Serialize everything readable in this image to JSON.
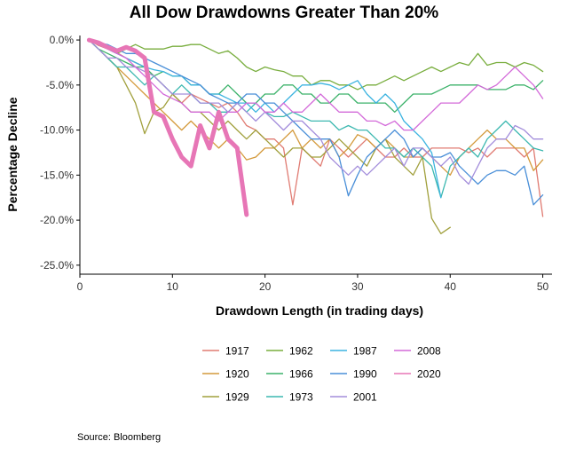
{
  "chart_data": {
    "type": "line",
    "title": "All Dow Drawdowns Greater Than 20%",
    "xlabel": "Drawdown Length (in trading days)",
    "ylabel": "Percentage Decline",
    "xlim": [
      0,
      51
    ],
    "ylim": [
      -26,
      0.5
    ],
    "x_ticks": [
      0,
      10,
      20,
      30,
      40,
      50
    ],
    "y_ticks": [
      0,
      -5,
      -10,
      -15,
      -20,
      -25
    ],
    "y_tick_labels": [
      "0.0%",
      "-5.0%",
      "-10.0%",
      "-15.0%",
      "-20.0%",
      "-25.0%"
    ],
    "grid": false,
    "legend_position": "bottom",
    "highlight_series": "2020",
    "source": "Source:  Bloomberg",
    "series": [
      {
        "name": "1917",
        "color": "#e07b72",
        "values": [
          0,
          -0.6,
          -1,
          -1.4,
          -2,
          -2.5,
          -3,
          -4,
          -5,
          -6,
          -7,
          -6,
          -6.5,
          -7,
          -7.5,
          -7,
          -8,
          -9.5,
          -10,
          -11,
          -11,
          -12,
          -18.3,
          -12,
          -13,
          -14,
          -11,
          -12,
          -13,
          -12,
          -11,
          -12,
          -13,
          -13,
          -12,
          -13,
          -13,
          -12,
          -12,
          -12,
          -12,
          -12.5,
          -12,
          -13,
          -12,
          -12,
          -12,
          -13,
          -12,
          -19.6
        ]
      },
      {
        "name": "1920",
        "color": "#d49a3c",
        "values": [
          0,
          -1,
          -2,
          -3,
          -4,
          -5,
          -6,
          -7,
          -8,
          -9,
          -10,
          -9,
          -10,
          -11,
          -12,
          -11,
          -12,
          -13.3,
          -13,
          -12,
          -12,
          -11,
          -10,
          -12,
          -11,
          -12,
          -11,
          -13,
          -12,
          -10.5,
          -11,
          -12,
          -11,
          -12,
          -13,
          -13,
          -12,
          -13,
          -14,
          -15,
          -13,
          -12,
          -11,
          -10,
          -11,
          -11,
          -12,
          -12,
          -14.5,
          -13.3
        ]
      },
      {
        "name": "1929",
        "color": "#a1a03d",
        "values": [
          0,
          -1,
          -2,
          -3,
          -5,
          -7,
          -10.4,
          -8,
          -7.5,
          -6,
          -7,
          -8,
          -8,
          -9,
          -10,
          -9,
          -10,
          -11,
          -10,
          -11,
          -12,
          -13,
          -12,
          -12,
          -13,
          -13,
          -12,
          -11,
          -12,
          -13,
          -14,
          -12,
          -11,
          -13,
          -14,
          -15,
          -13,
          -19.8,
          -21.5,
          -20.8
        ]
      },
      {
        "name": "1962",
        "color": "#78ad3d",
        "values": [
          0,
          -0.5,
          -1,
          -1.5,
          -1,
          -0.5,
          -1,
          -1,
          -1,
          -0.7,
          -0.7,
          -0.5,
          -0.5,
          -1,
          -1.5,
          -1.2,
          -2,
          -3,
          -3.5,
          -3,
          -3.3,
          -3.5,
          -4,
          -4,
          -5,
          -4.5,
          -4.5,
          -5,
          -5,
          -5.5,
          -5,
          -5,
          -4.5,
          -4,
          -4.5,
          -4,
          -3.5,
          -3,
          -3.5,
          -3,
          -2.5,
          -2.8,
          -1.5,
          -2.8,
          -2.5,
          -2.5,
          -3,
          -2.5,
          -2.8,
          -3.5
        ]
      },
      {
        "name": "1966",
        "color": "#3cb26a",
        "values": [
          0,
          -1,
          -1.5,
          -2,
          -2.5,
          -3,
          -3,
          -4,
          -3.5,
          -4,
          -4,
          -5,
          -5,
          -6,
          -6,
          -5,
          -6,
          -7,
          -7,
          -6,
          -6,
          -5,
          -5,
          -6,
          -6,
          -7,
          -7,
          -6,
          -6,
          -7,
          -7,
          -7,
          -7,
          -8,
          -7,
          -6,
          -6,
          -6,
          -5.5,
          -5,
          -5,
          -5,
          -5,
          -5.5,
          -5.5,
          -5.5,
          -5,
          -5,
          -5.5,
          -4.5
        ]
      },
      {
        "name": "1973",
        "color": "#3cb8b0",
        "values": [
          0,
          -1,
          -2,
          -3,
          -3,
          -4,
          -5,
          -4,
          -5,
          -6,
          -5,
          -6,
          -7,
          -7,
          -8,
          -8,
          -7,
          -8,
          -7,
          -8,
          -8.5,
          -8.5,
          -8,
          -8.5,
          -9,
          -9,
          -9,
          -10,
          -9.5,
          -10,
          -10,
          -11,
          -12,
          -12,
          -13,
          -12,
          -13,
          -14,
          -17.5,
          -14,
          -13,
          -12,
          -13,
          -11,
          -10,
          -9,
          -10,
          -11,
          -12,
          -12.3
        ]
      },
      {
        "name": "1987",
        "color": "#3bb3e0",
        "values": [
          0,
          -0.5,
          -1,
          -1.5,
          -2,
          -2.5,
          -3,
          -3.3,
          -3.5,
          -4,
          -4,
          -5,
          -5,
          -6,
          -6,
          -6.5,
          -7,
          -7,
          -8,
          -7,
          -8,
          -7,
          -6,
          -5,
          -5,
          -4.8,
          -5,
          -5.5,
          -5,
          -4.5,
          -6,
          -7,
          -6,
          -7,
          -9,
          -10,
          -11,
          -12.5,
          -17.5
        ]
      },
      {
        "name": "1990",
        "color": "#4a8fd8",
        "values": [
          0,
          -0.3,
          -0.5,
          -1,
          -1.5,
          -1.5,
          -2,
          -2.5,
          -3,
          -3.5,
          -4,
          -4.5,
          -5,
          -6,
          -6.5,
          -7,
          -7,
          -6,
          -6,
          -7,
          -7,
          -8,
          -9,
          -10,
          -11,
          -11,
          -11,
          -13,
          -17.3,
          -15,
          -13,
          -12,
          -11,
          -10,
          -11,
          -13,
          -12,
          -13,
          -13,
          -12.5,
          -14,
          -15,
          -16,
          -15,
          -14.5,
          -14.5,
          -15,
          -14,
          -18.3,
          -17.2
        ]
      },
      {
        "name": "2001",
        "color": "#a38ddb",
        "values": [
          0,
          -1,
          -2,
          -2,
          -3,
          -3,
          -3.5,
          -4,
          -5,
          -6,
          -6,
          -6,
          -7,
          -7,
          -7,
          -8,
          -7,
          -8,
          -9,
          -8,
          -9,
          -10,
          -9,
          -9,
          -10,
          -11,
          -13,
          -14,
          -15,
          -14,
          -15,
          -14,
          -13,
          -12,
          -14,
          -12,
          -12,
          -13,
          -14,
          -13,
          -15,
          -16,
          -14,
          -12,
          -11,
          -11,
          -9.5,
          -10,
          -11,
          -11
        ]
      },
      {
        "name": "2008",
        "color": "#d36ad9",
        "values": [
          0,
          -0.5,
          -1,
          -1.5,
          -2,
          -3,
          -4,
          -5,
          -6,
          -6.5,
          -7,
          -8,
          -8,
          -8,
          -9,
          -8,
          -8,
          -7,
          -7,
          -8,
          -8,
          -7,
          -8,
          -8,
          -7,
          -6,
          -7,
          -8,
          -8,
          -8,
          -9,
          -9,
          -9.5,
          -9,
          -10,
          -10,
          -9,
          -8,
          -7,
          -7,
          -7,
          -6,
          -5,
          -5.5,
          -5,
          -4,
          -3,
          -4,
          -5,
          -6.5
        ]
      },
      {
        "name": "2020",
        "color": "#e776b6",
        "highlight": true,
        "values": [
          0,
          -0.3,
          -0.8,
          -1.2,
          -0.8,
          -1.2,
          -2,
          -8,
          -8.5,
          -11,
          -13,
          -14,
          -9.5,
          -12,
          -8,
          -11,
          -12,
          -19.4
        ]
      }
    ]
  }
}
